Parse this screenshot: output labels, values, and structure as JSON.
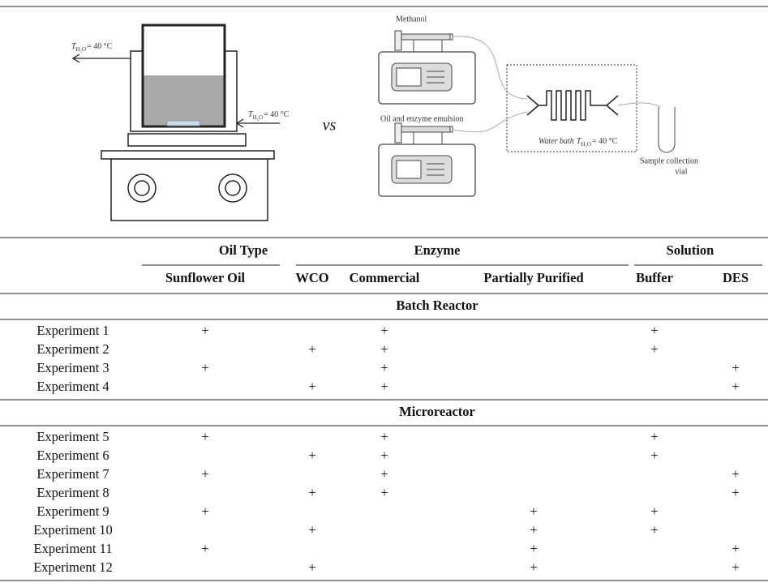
{
  "figure": {
    "jacket_out": {
      "symbol": "T",
      "subscript": "H₂O",
      "value": "= 40 °C"
    },
    "jacket_in": {
      "symbol": "T",
      "subscript": "H₂O",
      "value": "= 40 °C"
    },
    "versus": "vs",
    "pump_1": "Methanol",
    "pump_2": "Oil and enzyme emulsion",
    "water_bath": {
      "text": "Water bath",
      "symbol": "T",
      "subscript": "H₂O",
      "value": "= 40 °C"
    },
    "vial": [
      "Sample collection",
      "vial"
    ]
  },
  "table": {
    "groups": [
      "Oil Type",
      "Enzyme",
      "Solution"
    ],
    "columns": [
      "Sunflower Oil",
      "WCO",
      "Commercial",
      "Partially Purified",
      "Buffer",
      "DES"
    ],
    "sections": [
      {
        "title": "Batch Reactor",
        "rows": [
          [
            "Experiment 1",
            "+",
            null,
            "+",
            null,
            "+",
            null
          ],
          [
            "Experiment 2",
            null,
            "+",
            "+",
            null,
            "+",
            null
          ],
          [
            "Experiment 3",
            "+",
            null,
            "+",
            null,
            null,
            "+"
          ],
          [
            "Experiment 4",
            null,
            "+",
            "+",
            null,
            null,
            "+"
          ]
        ]
      },
      {
        "title": "Microreactor",
        "rows": [
          [
            "Experiment 5",
            "+",
            null,
            "+",
            null,
            "+",
            null
          ],
          [
            "Experiment 6",
            null,
            "+",
            "+",
            null,
            "+",
            null
          ],
          [
            "Experiment 7",
            "+",
            null,
            "+",
            null,
            null,
            "+"
          ],
          [
            "Experiment 8",
            null,
            "+",
            "+",
            null,
            null,
            "+"
          ],
          [
            "Experiment 9",
            "+",
            null,
            null,
            "+",
            "+",
            null
          ],
          [
            "Experiment 10",
            null,
            "+",
            null,
            "+",
            "+",
            null
          ],
          [
            "Experiment 11",
            "+",
            null,
            null,
            "+",
            null,
            "+"
          ],
          [
            "Experiment 12",
            null,
            "+",
            null,
            "+",
            null,
            "+"
          ]
        ]
      }
    ]
  }
}
